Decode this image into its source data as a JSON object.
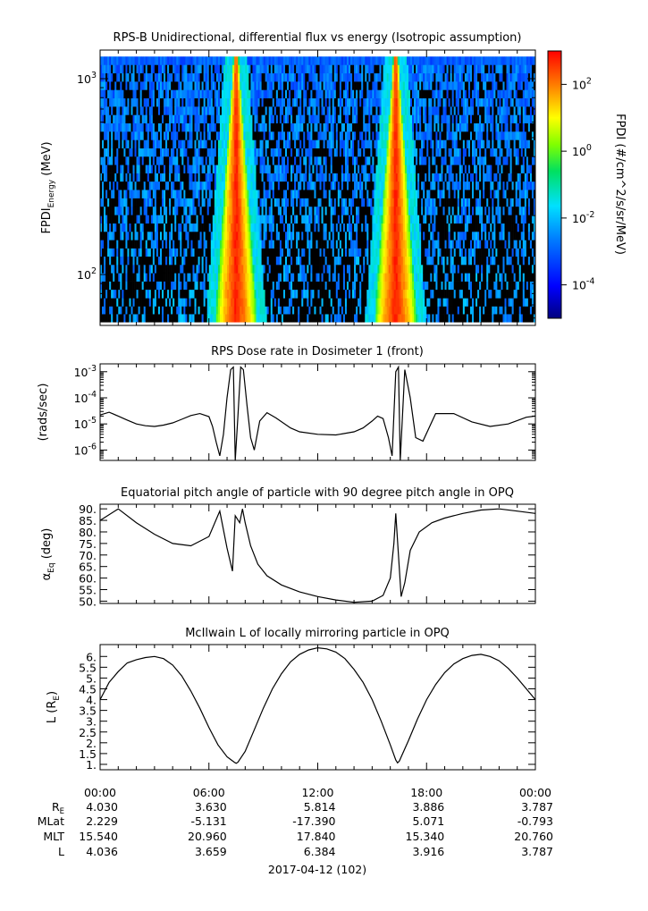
{
  "chart_data": [
    {
      "type": "heatmap",
      "title": "RPS-B  Unidirectional, differential flux vs energy (Isotropic assumption)",
      "ylabel": "FPDI",
      "ylabel_sub": "Energy",
      "ylabel_unit": "(MeV)",
      "y_scale": "log",
      "ylim": [
        55,
        1400
      ],
      "y_ticks": [
        {
          "value": 100,
          "base": "10",
          "exp": "2"
        },
        {
          "value": 1000,
          "base": "10",
          "exp": "3"
        }
      ],
      "energy_channels": [
        60,
        66,
        72,
        80,
        88,
        97,
        107,
        118,
        130,
        143,
        158,
        174,
        192,
        212,
        234,
        258,
        285,
        314,
        346,
        382,
        421,
        464,
        512,
        565,
        623,
        687,
        758,
        836,
        922,
        1017,
        1122,
        1237
      ],
      "colorbar_label": "FPDI (#/cm^2/s/sr/MeV)",
      "colorbar_range_log10": [
        -5,
        3
      ],
      "colorbar_ticks": [
        {
          "base": "10",
          "exp": "2",
          "value": 2
        },
        {
          "base": "10",
          "exp": "0",
          "value": 0
        },
        {
          "base": "10",
          "exp": "-2",
          "value": -2
        },
        {
          "base": "10",
          "exp": "-4",
          "value": -4
        }
      ],
      "features": [
        {
          "description": "high-flux band near perigee pass",
          "time_hours": 7.5
        },
        {
          "description": "high-flux band near perigee pass",
          "time_hours": 16.3
        }
      ]
    },
    {
      "type": "line",
      "title": "RPS  Dose rate in Dosimeter 1 (front)",
      "ylabel": "(rads/sec)",
      "y_scale": "log",
      "ylim": [
        4e-07,
        0.002
      ],
      "y_ticks": [
        {
          "value": 1e-06,
          "base": "10",
          "exp": "-6"
        },
        {
          "value": 1e-05,
          "base": "10",
          "exp": "-5"
        },
        {
          "value": 0.0001,
          "base": "10",
          "exp": "-4"
        },
        {
          "value": 0.001,
          "base": "10",
          "exp": "-3"
        }
      ],
      "x_hours": [
        0,
        0.5,
        1,
        1.5,
        2,
        2.5,
        3,
        3.5,
        4,
        4.5,
        5,
        5.5,
        6,
        6.2,
        6.4,
        6.6,
        6.8,
        7.0,
        7.2,
        7.35,
        7.45,
        7.6,
        7.75,
        7.9,
        8.1,
        8.3,
        8.5,
        8.8,
        9.2,
        9.7,
        10.5,
        11,
        12,
        13,
        14,
        14.5,
        15,
        15.3,
        15.6,
        15.9,
        16.1,
        16.3,
        16.45,
        16.55,
        16.8,
        17.1,
        17.4,
        17.8,
        18.5,
        19.5,
        20.5,
        21.5,
        22.5,
        23.5,
        24
      ],
      "y_values": [
        2.2e-05,
        2.8e-05,
        2e-05,
        1.4e-05,
        1e-05,
        8.5e-06,
        8e-06,
        9e-06,
        1.1e-05,
        1.5e-05,
        2.1e-05,
        2.5e-05,
        1.9e-05,
        8e-06,
        2e-06,
        6e-07,
        4e-06,
        0.0001,
        0.0012,
        0.0015,
        4e-07,
        2e-05,
        0.0015,
        0.0012,
        5e-05,
        3e-06,
        1e-06,
        1.3e-05,
        2.7e-05,
        1.7e-05,
        7e-06,
        5e-06,
        4e-06,
        3.8e-06,
        5e-06,
        7e-06,
        1.3e-05,
        2e-05,
        1.6e-05,
        3e-06,
        6e-07,
        0.001,
        0.0015,
        4e-07,
        0.0012,
        0.0001,
        3e-06,
        2.2e-06,
        2.5e-05,
        2.5e-05,
        1.2e-05,
        8e-06,
        1e-05,
        1.8e-05,
        2e-05
      ]
    },
    {
      "type": "line",
      "title": "Equatorial pitch angle of particle with 90 degree pitch angle in OPQ",
      "ylabel": "α",
      "ylabel_sub": "Eq",
      "ylabel_unit": "(deg)",
      "ylim": [
        49,
        92
      ],
      "y_ticks": [
        "50.",
        "55.",
        "60.",
        "65.",
        "70.",
        "75.",
        "80.",
        "85.",
        "90."
      ],
      "x_hours": [
        0,
        1,
        2,
        3,
        4,
        5,
        6,
        6.6,
        7.0,
        7.3,
        7.45,
        7.7,
        7.85,
        8.0,
        8.3,
        8.7,
        9.2,
        10,
        11,
        12,
        13,
        14,
        15,
        15.6,
        16.0,
        16.2,
        16.3,
        16.45,
        16.6,
        16.8,
        17.1,
        17.6,
        18.3,
        19,
        20,
        21,
        22,
        23,
        24
      ],
      "y_values": [
        85,
        90,
        84,
        79,
        75,
        74,
        78,
        89,
        73,
        63,
        87,
        84,
        90,
        84,
        74,
        66,
        61,
        57,
        54,
        52,
        50.5,
        49.5,
        50,
        52.5,
        60,
        75,
        88,
        70,
        52,
        58,
        72,
        80,
        84,
        86,
        88,
        89.5,
        90,
        89,
        88
      ]
    },
    {
      "type": "line",
      "title": "McIlwain L of locally mirroring particle in OPQ",
      "ylabel": "L (R",
      "ylabel_sub": "E",
      "ylabel_unit": ")",
      "ylim": [
        0.75,
        6.55
      ],
      "y_ticks": [
        "1.",
        "1.5",
        "2.",
        "2.5",
        "3.",
        "3.5",
        "4.",
        "4.5",
        "5.",
        "5.5",
        "6."
      ],
      "x_hours": [
        0,
        0.5,
        1,
        1.5,
        2,
        2.5,
        3,
        3.5,
        4,
        4.5,
        5,
        5.5,
        6,
        6.5,
        7,
        7.4,
        7.5,
        7.6,
        8,
        8.5,
        9,
        9.5,
        10,
        10.5,
        11,
        11.5,
        12,
        12.5,
        13,
        13.5,
        14,
        14.5,
        15,
        15.5,
        16,
        16.3,
        16.4,
        16.5,
        17,
        17.5,
        18,
        18.5,
        19,
        19.5,
        20,
        20.5,
        21,
        21.5,
        22,
        22.5,
        23,
        23.5,
        24
      ],
      "y_values": [
        4.0,
        4.8,
        5.3,
        5.7,
        5.85,
        5.95,
        6.0,
        5.9,
        5.6,
        5.1,
        4.4,
        3.6,
        2.7,
        1.9,
        1.35,
        1.1,
        1.05,
        1.1,
        1.6,
        2.6,
        3.6,
        4.5,
        5.2,
        5.75,
        6.1,
        6.3,
        6.4,
        6.35,
        6.2,
        5.9,
        5.4,
        4.8,
        4.0,
        3.0,
        1.9,
        1.2,
        1.07,
        1.15,
        2.1,
        3.1,
        4.0,
        4.7,
        5.25,
        5.65,
        5.9,
        6.05,
        6.1,
        6.0,
        5.8,
        5.45,
        5.0,
        4.5,
        4.0
      ]
    }
  ],
  "x_axis": {
    "range_hours": [
      0,
      24
    ],
    "tick_labels": [
      "00:00",
      "06:00",
      "12:00",
      "18:00",
      "00:00"
    ],
    "row_labels": [
      "R",
      "MLat",
      "MLT",
      "L"
    ],
    "row_label_subs": [
      "E",
      "",
      "",
      ""
    ],
    "rows": [
      [
        "4.030",
        "3.630",
        "5.814",
        "3.886",
        "3.787"
      ],
      [
        "2.229",
        "-5.131",
        "-17.390",
        "5.071",
        "-0.793"
      ],
      [
        "15.540",
        "20.960",
        "17.840",
        "15.340",
        "20.760"
      ],
      [
        "4.036",
        "3.659",
        "6.384",
        "3.916",
        "3.787"
      ]
    ],
    "date_label": "2017-04-12 (102)"
  }
}
